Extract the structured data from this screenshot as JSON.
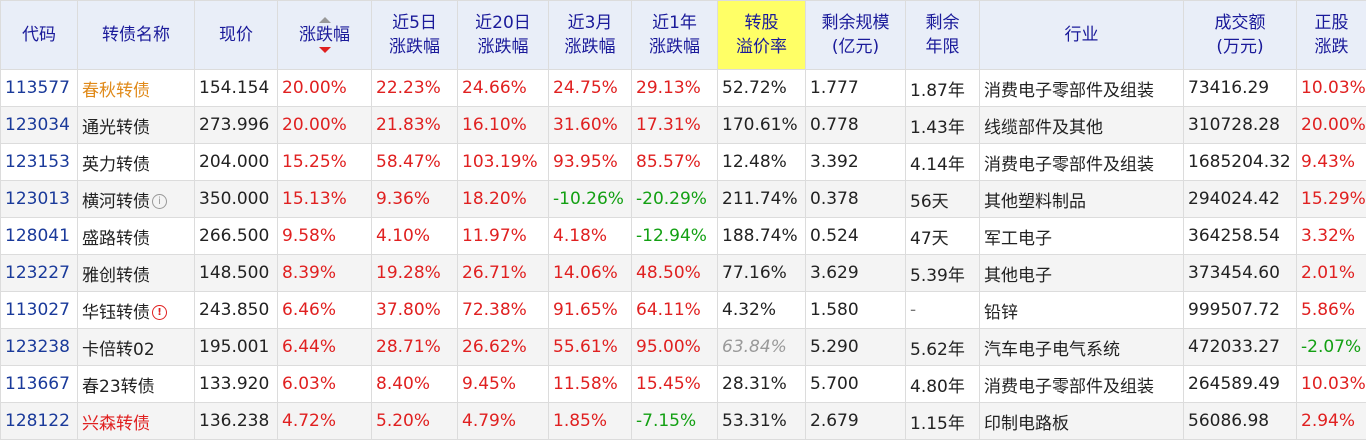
{
  "headers": {
    "code": "代码",
    "name": "转债名称",
    "price": "现价",
    "change": "涨跌幅",
    "d5": [
      "近5日",
      "涨跌幅"
    ],
    "d20": [
      "近20日",
      "涨跌幅"
    ],
    "m3": [
      "近3月",
      "涨跌幅"
    ],
    "y1": [
      "近1年",
      "涨跌幅"
    ],
    "premium": [
      "转股",
      "溢价率"
    ],
    "scale": [
      "剩余规模",
      "(亿元)"
    ],
    "remain": [
      "剩余",
      "年限"
    ],
    "industry": "行业",
    "volume": [
      "成交额",
      "(万元)"
    ],
    "stock": [
      "正股",
      "涨跌"
    ]
  },
  "colors": {
    "header_bg": "#e9eef8",
    "header_text": "#1a1a9a",
    "highlight": "#ffff66",
    "up": "#e02020",
    "down": "#13a013",
    "code": "#1a3a9a"
  },
  "rows": [
    {
      "code": "113577",
      "name": "春秋转债",
      "price": "154.154",
      "change": "20.00%",
      "d5": "22.23%",
      "d20": "24.66%",
      "m3": "24.75%",
      "y1": "29.13%",
      "premium": "52.72%",
      "scale": "1.777",
      "remain": "1.87年",
      "industry": "消费电子零部件及组装",
      "volume": "73416.29",
      "stock": "10.03%"
    },
    {
      "code": "123034",
      "name": "通光转债",
      "price": "273.996",
      "change": "20.00%",
      "d5": "21.83%",
      "d20": "16.10%",
      "m3": "31.60%",
      "y1": "17.31%",
      "premium": "170.61%",
      "scale": "0.778",
      "remain": "1.43年",
      "industry": "线缆部件及其他",
      "volume": "310728.28",
      "stock": "20.00%"
    },
    {
      "code": "123153",
      "name": "英力转债",
      "price": "204.000",
      "change": "15.25%",
      "d5": "58.47%",
      "d20": "103.19%",
      "m3": "93.95%",
      "y1": "85.57%",
      "premium": "12.48%",
      "scale": "3.392",
      "remain": "4.14年",
      "industry": "消费电子零部件及组装",
      "volume": "1685204.32",
      "stock": "9.43%"
    },
    {
      "code": "123013",
      "name": "横河转债",
      "price": "350.000",
      "change": "15.13%",
      "d5": "9.36%",
      "d20": "18.20%",
      "m3": "-10.26%",
      "y1": "-20.29%",
      "premium": "211.74%",
      "scale": "0.378",
      "remain": "56天",
      "industry": "其他塑料制品",
      "volume": "294024.42",
      "stock": "15.29%"
    },
    {
      "code": "128041",
      "name": "盛路转债",
      "price": "266.500",
      "change": "9.58%",
      "d5": "4.10%",
      "d20": "11.97%",
      "m3": "4.18%",
      "y1": "-12.94%",
      "premium": "188.74%",
      "scale": "0.524",
      "remain": "47天",
      "industry": "军工电子",
      "volume": "364258.54",
      "stock": "3.32%"
    },
    {
      "code": "123227",
      "name": "雅创转债",
      "price": "148.500",
      "change": "8.39%",
      "d5": "19.28%",
      "d20": "26.71%",
      "m3": "14.06%",
      "y1": "48.50%",
      "premium": "77.16%",
      "scale": "3.629",
      "remain": "5.39年",
      "industry": "其他电子",
      "volume": "373454.60",
      "stock": "2.01%"
    },
    {
      "code": "113027",
      "name": "华钰转债",
      "price": "243.850",
      "change": "6.46%",
      "d5": "37.80%",
      "d20": "72.38%",
      "m3": "91.65%",
      "y1": "64.11%",
      "premium": "4.32%",
      "scale": "1.580",
      "remain": "-",
      "industry": "铅锌",
      "volume": "999507.72",
      "stock": "5.86%"
    },
    {
      "code": "123238",
      "name": "卡倍转02",
      "price": "195.001",
      "change": "6.44%",
      "d5": "28.71%",
      "d20": "26.62%",
      "m3": "55.61%",
      "y1": "95.00%",
      "premium": "63.84%",
      "scale": "5.290",
      "remain": "5.62年",
      "industry": "汽车电子电气系统",
      "volume": "472033.27",
      "stock": "-2.07%"
    },
    {
      "code": "113667",
      "name": "春23转债",
      "price": "133.920",
      "change": "6.03%",
      "d5": "8.40%",
      "d20": "9.45%",
      "m3": "11.58%",
      "y1": "15.45%",
      "premium": "28.31%",
      "scale": "5.700",
      "remain": "4.80年",
      "industry": "消费电子零部件及组装",
      "volume": "264589.49",
      "stock": "10.03%"
    },
    {
      "code": "128122",
      "name": "兴森转债",
      "price": "136.238",
      "change": "4.72%",
      "d5": "5.20%",
      "d20": "4.79%",
      "m3": "1.85%",
      "y1": "-7.15%",
      "premium": "53.31%",
      "scale": "2.679",
      "remain": "1.15年",
      "industry": "印制电路板",
      "volume": "56086.98",
      "stock": "2.94%"
    }
  ]
}
